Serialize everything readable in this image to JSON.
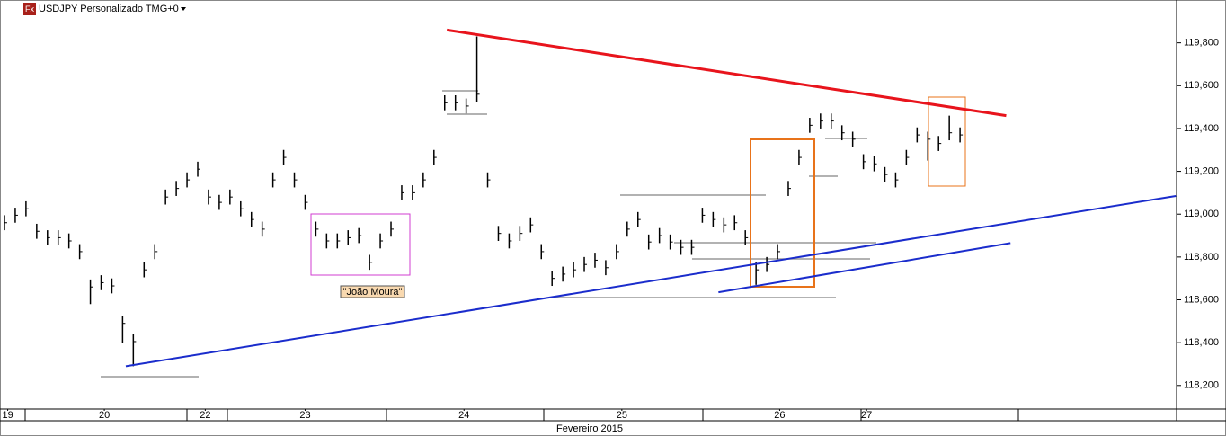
{
  "chart_data": {
    "type": "ohlc",
    "title": "USDJPY Personalizado TMG+0",
    "icon_label": "Fx",
    "x_label": "Fevereiro 2015",
    "annotation": "\"João Moura\"",
    "color": "#000000",
    "ylim": [
      118090,
      120000
    ],
    "yticks": [
      {
        "value": 118200,
        "label": "118,200"
      },
      {
        "value": 118400,
        "label": "118,400"
      },
      {
        "value": 118600,
        "label": "118,600"
      },
      {
        "value": 118800,
        "label": "118,800"
      },
      {
        "value": 119000,
        "label": "119,000"
      },
      {
        "value": 119200,
        "label": "119,200"
      },
      {
        "value": 119400,
        "label": "119,400"
      },
      {
        "value": 119600,
        "label": "119,600"
      },
      {
        "value": 119800,
        "label": "119,800"
      }
    ],
    "xlim": [
      0,
      109
    ],
    "xticks": [
      {
        "value": 0.3,
        "label": "19"
      },
      {
        "value": 9.3,
        "label": "20"
      },
      {
        "value": 18.7,
        "label": "22"
      },
      {
        "value": 28,
        "label": "23"
      },
      {
        "value": 42.8,
        "label": "24"
      },
      {
        "value": 57.5,
        "label": "25"
      },
      {
        "value": 72.2,
        "label": "26"
      },
      {
        "value": 80.3,
        "label": "27"
      }
    ],
    "high": [
      118995,
      119030,
      119060,
      118955,
      118925,
      118925,
      118910,
      118860,
      118695,
      118715,
      118700,
      118525,
      118440,
      118775,
      118860,
      119115,
      119155,
      119195,
      119245,
      119115,
      119090,
      119115,
      119060,
      119010,
      118965,
      119195,
      119300,
      119195,
      119090,
      118965,
      118910,
      118910,
      118925,
      118935,
      118810,
      118910,
      118965,
      119135,
      119135,
      119195,
      119300,
      119555,
      119555,
      119540,
      119830,
      119195,
      118945,
      118910,
      118945,
      118985,
      118860,
      118735,
      118755,
      118775,
      118800,
      118820,
      118785,
      118860,
      118965,
      119010,
      118905,
      118935,
      118905,
      118880,
      118880,
      119030,
      119010,
      118985,
      118995,
      118925,
      118775,
      118800,
      118860,
      119155,
      119300,
      119450,
      119470,
      119470,
      119415,
      119385,
      119280,
      119270,
      119220,
      119195,
      119300,
      119405,
      119385,
      119365,
      119460,
      119405
    ],
    "low": [
      118925,
      118960,
      118990,
      118885,
      118855,
      118855,
      118840,
      118790,
      118580,
      118645,
      118630,
      118400,
      118290,
      118705,
      118790,
      119045,
      119085,
      119125,
      119175,
      119045,
      119020,
      119045,
      118990,
      118940,
      118895,
      119125,
      119230,
      119125,
      119020,
      118895,
      118840,
      118840,
      118855,
      118865,
      118740,
      118840,
      118895,
      119065,
      119065,
      119125,
      119230,
      119485,
      119485,
      119470,
      119525,
      119125,
      118875,
      118840,
      118875,
      118915,
      118790,
      118665,
      118685,
      118705,
      118730,
      118750,
      118715,
      118790,
      118895,
      118940,
      118835,
      118865,
      118835,
      118810,
      118810,
      118960,
      118940,
      118915,
      118925,
      118855,
      118670,
      118730,
      118790,
      119085,
      119230,
      119380,
      119400,
      119400,
      119345,
      119315,
      119210,
      119200,
      119150,
      119125,
      119230,
      119335,
      119250,
      119295,
      119345,
      119335
    ],
    "close": [
      118960,
      118995,
      119025,
      118920,
      118890,
      118890,
      118875,
      118825,
      118660,
      118680,
      118665,
      118490,
      118405,
      118740,
      118825,
      119080,
      119120,
      119160,
      119210,
      119080,
      119055,
      119080,
      119025,
      118975,
      118930,
      119160,
      119265,
      119160,
      119055,
      118930,
      118875,
      118875,
      118890,
      118900,
      118775,
      118875,
      118930,
      119100,
      119100,
      119160,
      119265,
      119520,
      119520,
      119505,
      119560,
      119160,
      118910,
      118875,
      118910,
      118950,
      118825,
      118700,
      118720,
      118740,
      118765,
      118785,
      118750,
      118825,
      118930,
      118975,
      118870,
      118900,
      118870,
      118845,
      118845,
      118995,
      118975,
      118950,
      118960,
      118890,
      118740,
      118765,
      118825,
      119120,
      119265,
      119415,
      119435,
      119435,
      119380,
      119350,
      119245,
      119235,
      119185,
      119160,
      119265,
      119370,
      119350,
      119330,
      119380,
      119370
    ],
    "trendlines": [
      {
        "color": "#e8141c",
        "points": [
          [
            41.2,
            119860
          ],
          [
            93.3,
            119460
          ]
        ]
      },
      {
        "color": "#1a2ccc",
        "points": [
          [
            11.3,
            118290
          ],
          [
            109.1,
            119085
          ]
        ]
      },
      {
        "color": "#1a2ccc",
        "points": [
          [
            66.5,
            118635
          ],
          [
            93.7,
            118865
          ]
        ]
      }
    ]
  }
}
